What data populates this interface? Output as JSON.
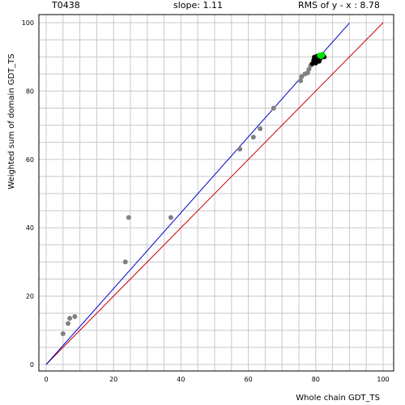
{
  "header": {
    "target_id": "T0438",
    "slope_text": "slope: 1.11",
    "rms_text": "RMS of  y - x : 8.78"
  },
  "chart_data": {
    "type": "scatter",
    "title": "",
    "xlabel": "Whole chain GDT_TS",
    "ylabel": "Weighted sum of domain GDT_TS",
    "xlim": [
      0,
      100
    ],
    "ylim": [
      0,
      100
    ],
    "xticks": [
      0,
      20,
      40,
      60,
      80,
      100
    ],
    "yticks": [
      0,
      20,
      40,
      60,
      80,
      100
    ],
    "grid": true,
    "colors": {
      "grid": "#c8c8c8",
      "fit_line": "#0000cc",
      "identity_line": "#cc0000",
      "point_gray": "#808080",
      "point_black": "#000000",
      "point_highlight": "#00dd00"
    },
    "fit_line": {
      "slope": 1.11,
      "x_range": [
        0,
        90
      ]
    },
    "identity_line": {
      "slope": 1,
      "x_range": [
        0,
        100
      ]
    },
    "series": [
      {
        "color": "gray",
        "points": [
          [
            5.0,
            9.0
          ],
          [
            6.5,
            12.0
          ],
          [
            7.0,
            13.5
          ],
          [
            8.5,
            14.0
          ],
          [
            23.5,
            30.0
          ],
          [
            24.5,
            43.0
          ],
          [
            37.0,
            43.0
          ],
          [
            57.5,
            63.0
          ],
          [
            61.5,
            66.5
          ],
          [
            63.5,
            69.0
          ],
          [
            67.5,
            75.0
          ],
          [
            75.5,
            83.0
          ],
          [
            75.8,
            84.2
          ],
          [
            76.8,
            85.0
          ],
          [
            77.6,
            85.3
          ],
          [
            78.0,
            86.4
          ],
          [
            78.5,
            87.5
          ]
        ]
      },
      {
        "color": "black",
        "points": [
          [
            79.0,
            88.0
          ],
          [
            79.4,
            89.0
          ],
          [
            79.8,
            88.6
          ],
          [
            80.2,
            89.4
          ],
          [
            80.6,
            89.0
          ],
          [
            80.8,
            90.0
          ],
          [
            81.0,
            88.7
          ],
          [
            81.4,
            89.6
          ],
          [
            79.6,
            89.9
          ],
          [
            80.0,
            88.2
          ],
          [
            80.4,
            90.2
          ],
          [
            82.5,
            90.0
          ]
        ]
      },
      {
        "color": "green",
        "points": [
          [
            81.2,
            90.4
          ],
          [
            82.0,
            90.6
          ],
          [
            81.6,
            90.2
          ]
        ]
      }
    ]
  }
}
